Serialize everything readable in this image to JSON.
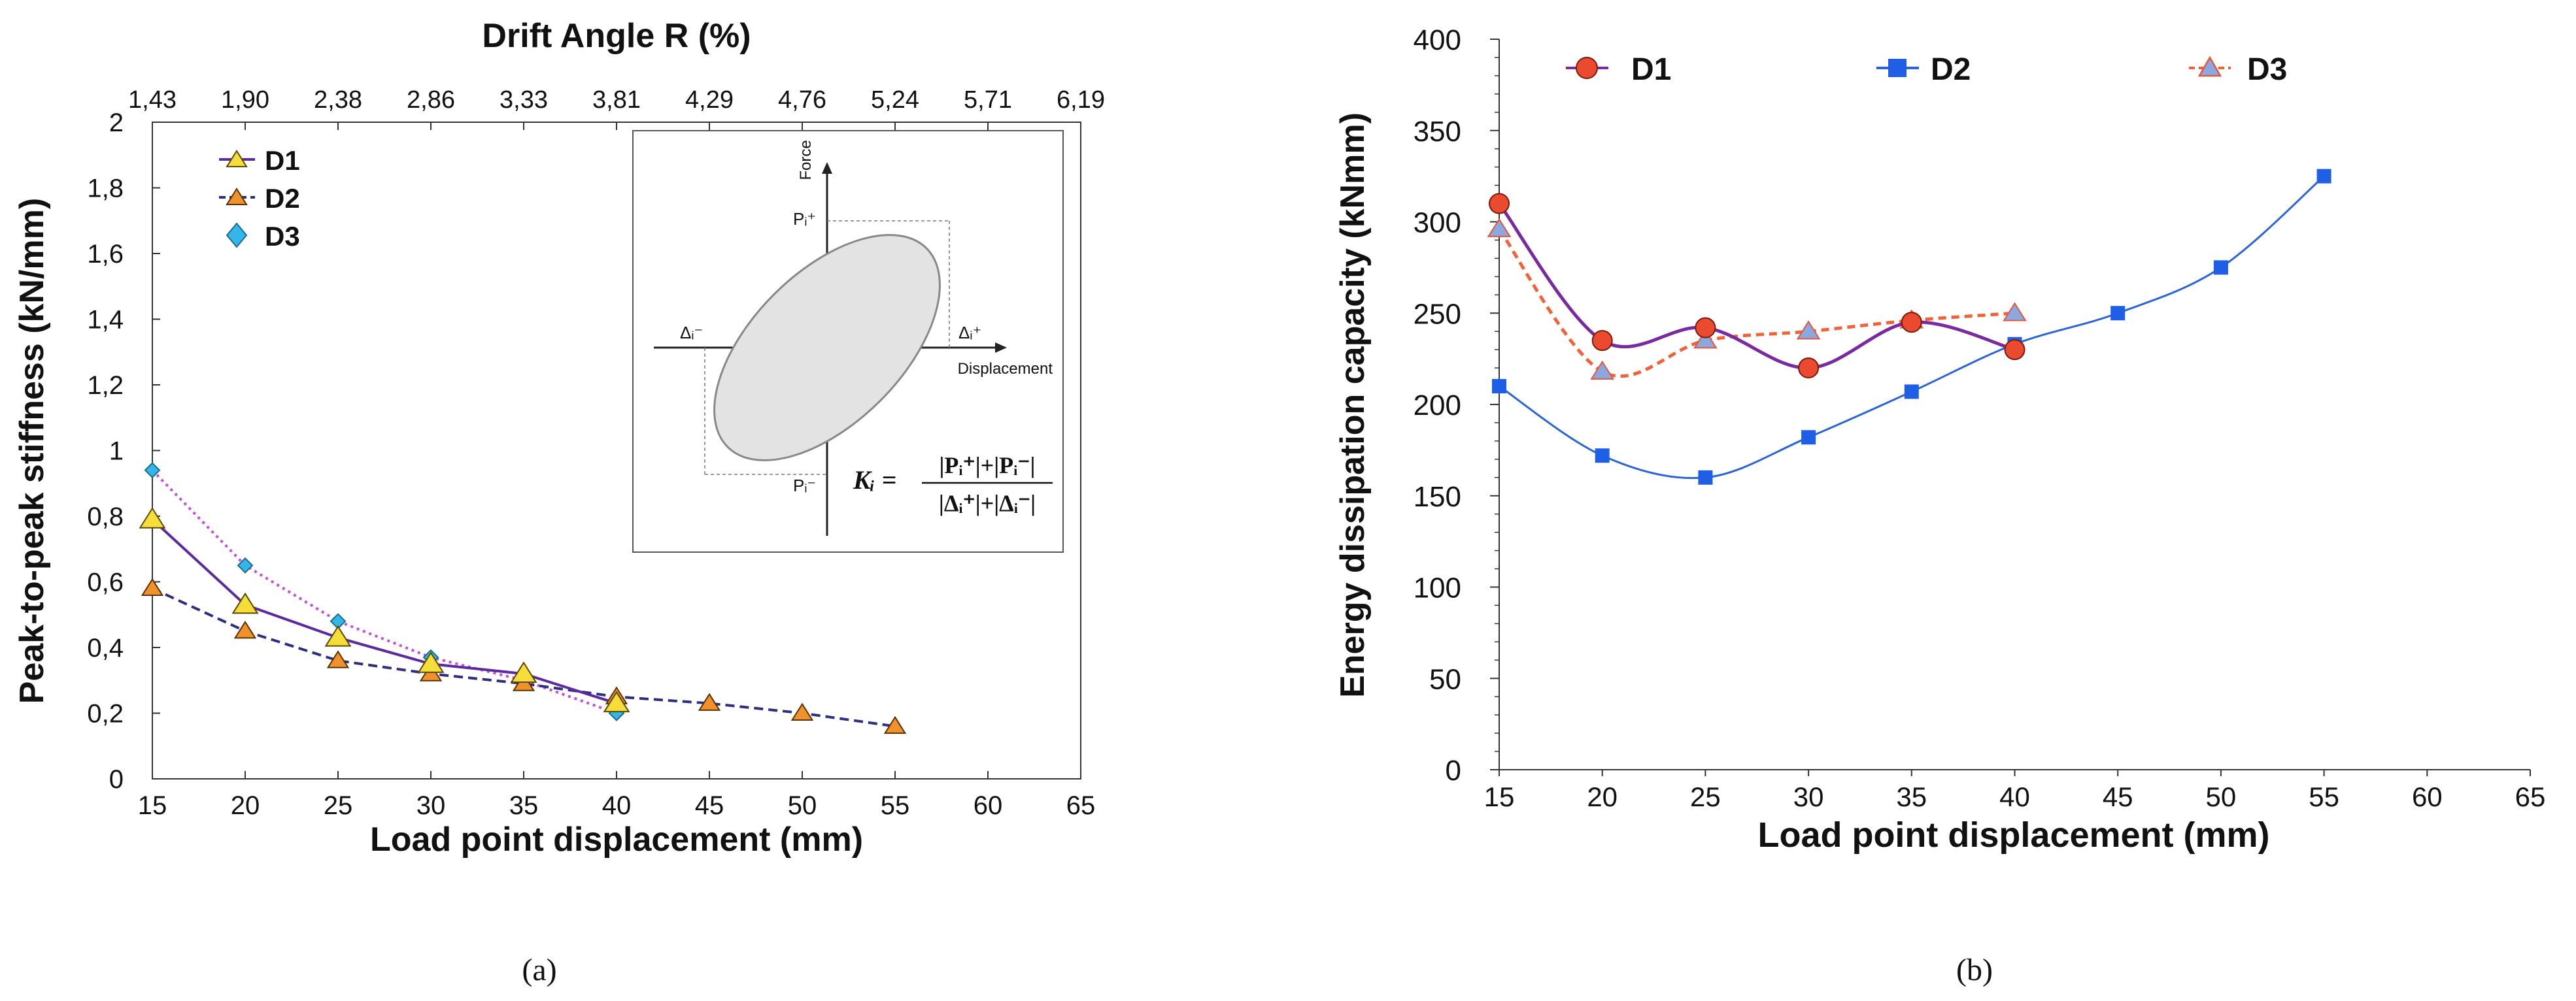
{
  "chart_data": [
    {
      "panel_label": "(a)",
      "type": "line",
      "title": "",
      "xlabel": "Load point displacement (mm)",
      "ylabel": "Peak-to-peak stiffness (kN/mm)",
      "x_ticks": [
        "15",
        "20",
        "25",
        "30",
        "35",
        "40",
        "45",
        "50",
        "55",
        "60",
        "65"
      ],
      "y_ticks": [
        "0",
        "0,2",
        "0,4",
        "0,6",
        "0,8",
        "1",
        "1,2",
        "1,4",
        "1,6",
        "1,8",
        "2"
      ],
      "xlim": [
        15,
        65
      ],
      "ylim": [
        0,
        2
      ],
      "grid": false,
      "legend_position": "top-left",
      "secondary_x_axis": {
        "label": "Drift Angle R (%)",
        "ticks": [
          "1,43",
          "1,90",
          "2,38",
          "2,86",
          "3,33",
          "3,81",
          "4,29",
          "4,76",
          "5,24",
          "5,71",
          "6,19"
        ]
      },
      "series": [
        {
          "name": "D1",
          "marker": "triangle",
          "marker_color": "#f5de3a",
          "line_color": "#5b2a9e",
          "line_style": "solid",
          "x": [
            15,
            20,
            25,
            30,
            35,
            40
          ],
          "values": [
            0.79,
            0.53,
            0.43,
            0.35,
            0.32,
            0.23
          ]
        },
        {
          "name": "D2",
          "marker": "triangle",
          "marker_color": "#f0922b",
          "line_color": "#2c2e80",
          "line_style": "dashed",
          "x": [
            15,
            20,
            25,
            30,
            35,
            40,
            45,
            50,
            55
          ],
          "values": [
            0.58,
            0.45,
            0.36,
            0.32,
            0.29,
            0.25,
            0.23,
            0.2,
            0.16
          ]
        },
        {
          "name": "D3",
          "marker": "diamond",
          "marker_color": "#34b7e8",
          "line_color": "#c24fd8",
          "line_style": "dotted",
          "x": [
            15,
            20,
            25,
            30,
            35,
            40
          ],
          "values": [
            0.94,
            0.65,
            0.48,
            0.37,
            0.3,
            0.2
          ]
        }
      ],
      "inset": {
        "y_axis_label": "Force",
        "x_axis_label": "Displacement",
        "p_plus": "Pᵢ⁺",
        "p_minus": "Pᵢ⁻",
        "delta_minus": "Δᵢ⁻",
        "delta_plus": "Δᵢ⁺",
        "formula_lhs": "Kᵢ =",
        "formula_numerator": "|Pᵢ⁺|+|Pᵢ⁻|",
        "formula_denominator": "|Δᵢ⁺|+|Δᵢ⁻|"
      }
    },
    {
      "panel_label": "(b)",
      "type": "line",
      "title": "",
      "xlabel": "Load point displacement (mm)",
      "ylabel": "Energy dissipation capacity (kNmm)",
      "x_ticks": [
        "15",
        "20",
        "25",
        "30",
        "35",
        "40",
        "45",
        "50",
        "55",
        "60",
        "65"
      ],
      "y_ticks": [
        "0",
        "50",
        "100",
        "150",
        "200",
        "250",
        "300",
        "350",
        "400"
      ],
      "xlim": [
        15,
        65
      ],
      "ylim": [
        0,
        400
      ],
      "grid": false,
      "legend_position": "top",
      "series": [
        {
          "name": "D1",
          "marker": "circle",
          "marker_color": "#ea4a2f",
          "line_color": "#7a2aa0",
          "line_style": "solid",
          "x": [
            15,
            20,
            25,
            30,
            35,
            40
          ],
          "values": [
            310,
            235,
            242,
            220,
            245,
            230
          ]
        },
        {
          "name": "D2",
          "marker": "square",
          "marker_color": "#1f5fe6",
          "line_color": "#2b63d9",
          "line_style": "solid",
          "x": [
            15,
            20,
            25,
            30,
            35,
            40,
            45,
            50,
            55
          ],
          "values": [
            210,
            172,
            160,
            182,
            207,
            233,
            250,
            275,
            325
          ]
        },
        {
          "name": "D3",
          "marker": "triangle",
          "marker_color": "#8aa9e0",
          "line_color": "#f2623a",
          "line_style": "dashed",
          "x": [
            15,
            20,
            25,
            30,
            35,
            40
          ],
          "values": [
            296,
            218,
            235,
            240,
            246,
            250
          ]
        }
      ]
    }
  ]
}
